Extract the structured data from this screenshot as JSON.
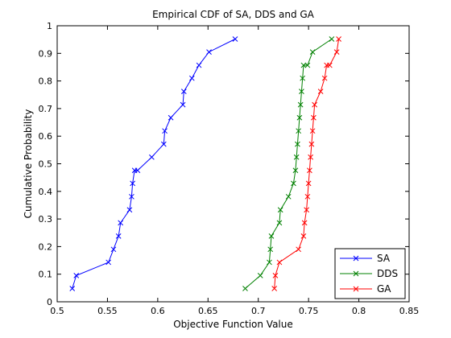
{
  "chart_data": {
    "type": "line",
    "title": "Empirical CDF of SA, DDS and GA",
    "xlabel": "Objective Function Value",
    "ylabel": "Cumulative Probability",
    "xlim": [
      0.5,
      0.85
    ],
    "ylim": [
      0,
      1
    ],
    "xticks": [
      "0.5",
      "0.55",
      "0.6",
      "0.65",
      "0.7",
      "0.75",
      "0.8",
      "0.85"
    ],
    "yticks": [
      "0",
      "0.1",
      "0.2",
      "0.3",
      "0.4",
      "0.5",
      "0.6",
      "0.7",
      "0.8",
      "0.9",
      "1"
    ],
    "xtick_values": [
      0.5,
      0.55,
      0.6,
      0.65,
      0.7,
      0.75,
      0.8,
      0.85
    ],
    "ytick_values": [
      0,
      0.1,
      0.2,
      0.3,
      0.4,
      0.5,
      0.6,
      0.7,
      0.8,
      0.9,
      1
    ],
    "grid": false,
    "legend_position": "bottom-right",
    "marker": "x",
    "series": [
      {
        "name": "SA",
        "color": "#0000ff",
        "x": [
          0.515,
          0.519,
          0.551,
          0.556,
          0.561,
          0.563,
          0.572,
          0.574,
          0.575,
          0.577,
          0.58,
          0.594,
          0.606,
          0.607,
          0.613,
          0.625,
          0.626,
          0.634,
          0.641,
          0.651,
          0.677
        ],
        "y": [
          0.048,
          0.095,
          0.143,
          0.19,
          0.238,
          0.286,
          0.333,
          0.381,
          0.429,
          0.476,
          0.476,
          0.524,
          0.571,
          0.619,
          0.667,
          0.714,
          0.762,
          0.81,
          0.857,
          0.905,
          0.952
        ]
      },
      {
        "name": "DDS",
        "color": "#008000",
        "x": [
          0.687,
          0.702,
          0.711,
          0.712,
          0.713,
          0.721,
          0.722,
          0.73,
          0.735,
          0.737,
          0.738,
          0.739,
          0.74,
          0.741,
          0.742,
          0.743,
          0.744,
          0.745,
          0.749,
          0.754,
          0.773
        ],
        "y": [
          0.048,
          0.095,
          0.143,
          0.19,
          0.238,
          0.286,
          0.333,
          0.381,
          0.429,
          0.476,
          0.524,
          0.571,
          0.619,
          0.667,
          0.714,
          0.762,
          0.81,
          0.857,
          0.857,
          0.905,
          0.952
        ]
      },
      {
        "name": "GA",
        "color": "#ff0000",
        "x": [
          0.716,
          0.717,
          0.721,
          0.74,
          0.745,
          0.746,
          0.748,
          0.749,
          0.75,
          0.751,
          0.752,
          0.753,
          0.754,
          0.755,
          0.756,
          0.762,
          0.766,
          0.768,
          0.771,
          0.778,
          0.78
        ],
        "y": [
          0.048,
          0.095,
          0.143,
          0.19,
          0.238,
          0.286,
          0.333,
          0.381,
          0.429,
          0.476,
          0.524,
          0.571,
          0.619,
          0.667,
          0.714,
          0.762,
          0.81,
          0.857,
          0.857,
          0.905,
          0.952
        ]
      }
    ]
  }
}
